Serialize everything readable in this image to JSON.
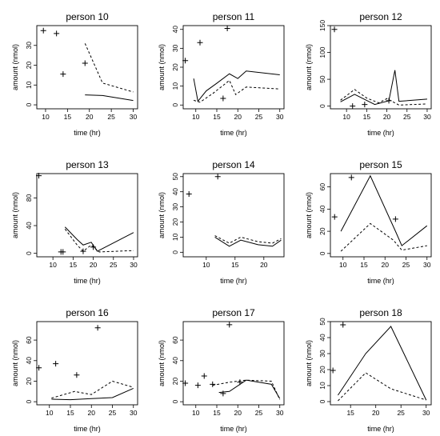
{
  "figure": {
    "panels": [
      {
        "title": "person 10",
        "xlabel": "time (hr)",
        "ylabel": "amount (nmol)"
      },
      {
        "title": "person 11",
        "xlabel": "time (hr)",
        "ylabel": "amount (nmol)"
      },
      {
        "title": "person 12",
        "xlabel": "time (hr)",
        "ylabel": "amount (nmol)"
      },
      {
        "title": "person 13",
        "xlabel": "time (hr)",
        "ylabel": "amount (nmol)"
      },
      {
        "title": "person 14",
        "xlabel": "time (hr)",
        "ylabel": "amount (nmol)"
      },
      {
        "title": "person 15",
        "xlabel": "time (hr)",
        "ylabel": "amount (nmol)"
      },
      {
        "title": "person 16",
        "xlabel": "time (hr)",
        "ylabel": "amount (nmol)"
      },
      {
        "title": "person 17",
        "xlabel": "time (hr)",
        "ylabel": "amount (nmol)"
      },
      {
        "title": "person 18",
        "xlabel": "time (hr)",
        "ylabel": "amount (nmol)"
      }
    ]
  },
  "chart_data": [
    {
      "type": "line",
      "title": "person 10",
      "xlabel": "time (hr)",
      "ylabel": "amount (nmol)",
      "xlim": [
        8,
        31
      ],
      "ylim": [
        -2,
        40
      ],
      "xticks": [
        10,
        15,
        20,
        25,
        30
      ],
      "yticks": [
        0,
        10,
        20,
        30
      ],
      "series": [
        {
          "style": "solid",
          "x": [
            19,
            23,
            30
          ],
          "y": [
            5,
            4.7,
            2.2
          ]
        },
        {
          "style": "dashed",
          "x": [
            19,
            23,
            30
          ],
          "y": [
            31,
            11,
            6.5
          ]
        },
        {
          "style": "points",
          "x": [
            9.5,
            12.5,
            14,
            19
          ],
          "y": [
            37.5,
            36,
            15.5,
            21
          ]
        }
      ]
    },
    {
      "type": "line",
      "title": "person 11",
      "xlabel": "time (hr)",
      "ylabel": "amount (nmol)",
      "xlim": [
        7,
        31
      ],
      "ylim": [
        -2,
        42
      ],
      "xticks": [
        10,
        15,
        20,
        25,
        30
      ],
      "yticks": [
        0,
        10,
        20,
        30,
        40
      ],
      "series": [
        {
          "style": "solid",
          "x": [
            9.5,
            10.5,
            12.5,
            15,
            18,
            20,
            22,
            30
          ],
          "y": [
            14,
            2,
            7.5,
            11.5,
            16.5,
            14,
            18,
            16
          ]
        },
        {
          "style": "dashed",
          "x": [
            9.5,
            11,
            14,
            18,
            19.5,
            22,
            30
          ],
          "y": [
            2.5,
            1.5,
            6,
            13,
            5.5,
            9.5,
            8.5
          ]
        },
        {
          "style": "points",
          "x": [
            7.5,
            11,
            16.5,
            17.5
          ],
          "y": [
            23.5,
            33,
            3.5,
            40.5
          ]
        }
      ]
    },
    {
      "type": "line",
      "title": "person 12",
      "xlabel": "time (hr)",
      "ylabel": "amount (nmol)",
      "xlim": [
        6,
        31
      ],
      "ylim": [
        -5,
        150
      ],
      "xticks": [
        10,
        15,
        20,
        25,
        30
      ],
      "yticks": [
        0,
        50,
        100,
        150
      ],
      "series": [
        {
          "style": "solid",
          "x": [
            8.5,
            12,
            17,
            20.5,
            22,
            23,
            30
          ],
          "y": [
            8,
            22,
            3,
            10,
            67,
            9,
            13
          ]
        },
        {
          "style": "dashed",
          "x": [
            8.5,
            12,
            15,
            18,
            20,
            23,
            30
          ],
          "y": [
            11,
            31,
            15,
            6,
            14,
            2,
            4
          ]
        },
        {
          "style": "points",
          "x": [
            7,
            11.5,
            14.5,
            20.5
          ],
          "y": [
            143,
            0,
            3,
            10
          ]
        }
      ]
    },
    {
      "type": "line",
      "title": "person 13",
      "xlabel": "time (hr)",
      "ylabel": "amount (nmol)",
      "xlim": [
        6,
        31
      ],
      "ylim": [
        -5,
        115
      ],
      "xticks": [
        10,
        15,
        20,
        25,
        30
      ],
      "yticks": [
        0,
        40,
        80
      ],
      "series": [
        {
          "style": "solid",
          "x": [
            13,
            16,
            17.5,
            19.5,
            21,
            30
          ],
          "y": [
            38,
            20,
            12,
            16,
            3,
            30
          ]
        },
        {
          "style": "dashed",
          "x": [
            13,
            16,
            17.5,
            19.5,
            21.5,
            30
          ],
          "y": [
            35,
            12,
            3,
            12,
            2,
            4
          ]
        },
        {
          "style": "points",
          "x": [
            6.5,
            12,
            12.5,
            17.5,
            20
          ],
          "y": [
            112,
            2,
            2,
            3,
            9
          ]
        }
      ]
    },
    {
      "type": "line",
      "title": "person 14",
      "xlabel": "time (hr)",
      "ylabel": "amount (nmol)",
      "xlim": [
        6,
        23.5
      ],
      "ylim": [
        -3,
        52
      ],
      "xticks": [
        10,
        15,
        20
      ],
      "yticks": [
        0,
        10,
        20,
        30,
        40,
        50
      ],
      "series": [
        {
          "style": "solid",
          "x": [
            11.5,
            14,
            16,
            19,
            21.5,
            23
          ],
          "y": [
            10,
            4,
            8,
            5,
            4,
            8
          ]
        },
        {
          "style": "dashed",
          "x": [
            11.5,
            14,
            16,
            19,
            21.5,
            23
          ],
          "y": [
            11,
            6,
            10,
            7,
            6,
            9
          ]
        },
        {
          "style": "points",
          "x": [
            7,
            12
          ],
          "y": [
            38.5,
            50
          ]
        }
      ]
    },
    {
      "type": "line",
      "title": "person 15",
      "xlabel": "time (hr)",
      "ylabel": "amount (nmol)",
      "xlim": [
        7,
        31
      ],
      "ylim": [
        -3,
        72
      ],
      "xticks": [
        10,
        15,
        20,
        25,
        30
      ],
      "yticks": [
        0,
        20,
        40,
        60
      ],
      "series": [
        {
          "style": "solid",
          "x": [
            9.5,
            16.5,
            22.5,
            24,
            30
          ],
          "y": [
            20,
            70,
            20,
            7,
            25
          ]
        },
        {
          "style": "dashed",
          "x": [
            9.5,
            16.5,
            22,
            24,
            30
          ],
          "y": [
            2,
            27,
            12,
            3,
            7
          ]
        },
        {
          "style": "points",
          "x": [
            8,
            12,
            22.5
          ],
          "y": [
            33,
            68.5,
            31
          ]
        }
      ]
    },
    {
      "type": "line",
      "title": "person 16",
      "xlabel": "time (hr)",
      "ylabel": "amount (nmol)",
      "xlim": [
        7,
        31
      ],
      "ylim": [
        -3,
        78
      ],
      "xticks": [
        10,
        15,
        20,
        25,
        30
      ],
      "yticks": [
        0,
        20,
        40,
        60
      ],
      "series": [
        {
          "style": "solid",
          "x": [
            10.5,
            15,
            20,
            25,
            30
          ],
          "y": [
            2.5,
            2,
            3,
            4,
            13
          ]
        },
        {
          "style": "dashed",
          "x": [
            10.5,
            16,
            20,
            25,
            30
          ],
          "y": [
            3.5,
            10,
            7,
            20,
            14
          ]
        },
        {
          "style": "points",
          "x": [
            7.5,
            11.5,
            16.5,
            21.5
          ],
          "y": [
            33,
            37,
            26,
            72
          ]
        }
      ]
    },
    {
      "type": "line",
      "title": "person 17",
      "xlabel": "time (hr)",
      "ylabel": "amount (nmol)",
      "xlim": [
        7,
        31
      ],
      "ylim": [
        -3,
        78
      ],
      "xticks": [
        10,
        15,
        20,
        25,
        30
      ],
      "yticks": [
        0,
        20,
        40,
        60
      ],
      "series": [
        {
          "style": "solid",
          "x": [
            15.5,
            18,
            22,
            28,
            30
          ],
          "y": [
            9,
            10,
            21,
            17,
            3
          ]
        },
        {
          "style": "dashed",
          "x": [
            14,
            18,
            22,
            28,
            30
          ],
          "y": [
            16,
            19,
            21,
            20,
            2
          ]
        },
        {
          "style": "points",
          "x": [
            7.5,
            10.5,
            12,
            14,
            16.5,
            18,
            20.5
          ],
          "y": [
            18,
            16,
            25,
            17,
            8,
            75,
            19
          ]
        }
      ]
    },
    {
      "type": "line",
      "title": "person 18",
      "xlabel": "time (hr)",
      "ylabel": "amount (nmol)",
      "xlim": [
        11,
        31
      ],
      "ylim": [
        -2,
        50
      ],
      "xticks": [
        15,
        20,
        25,
        30
      ],
      "yticks": [
        0,
        10,
        20,
        30,
        40,
        50
      ],
      "series": [
        {
          "style": "solid",
          "x": [
            12.5,
            18,
            23,
            30
          ],
          "y": [
            4,
            30,
            47,
            1
          ]
        },
        {
          "style": "dashed",
          "x": [
            12.5,
            18,
            23,
            30
          ],
          "y": [
            0.5,
            18,
            8,
            1
          ]
        },
        {
          "style": "points",
          "x": [
            11.5,
            13.5
          ],
          "y": [
            19.5,
            48
          ]
        }
      ]
    }
  ]
}
